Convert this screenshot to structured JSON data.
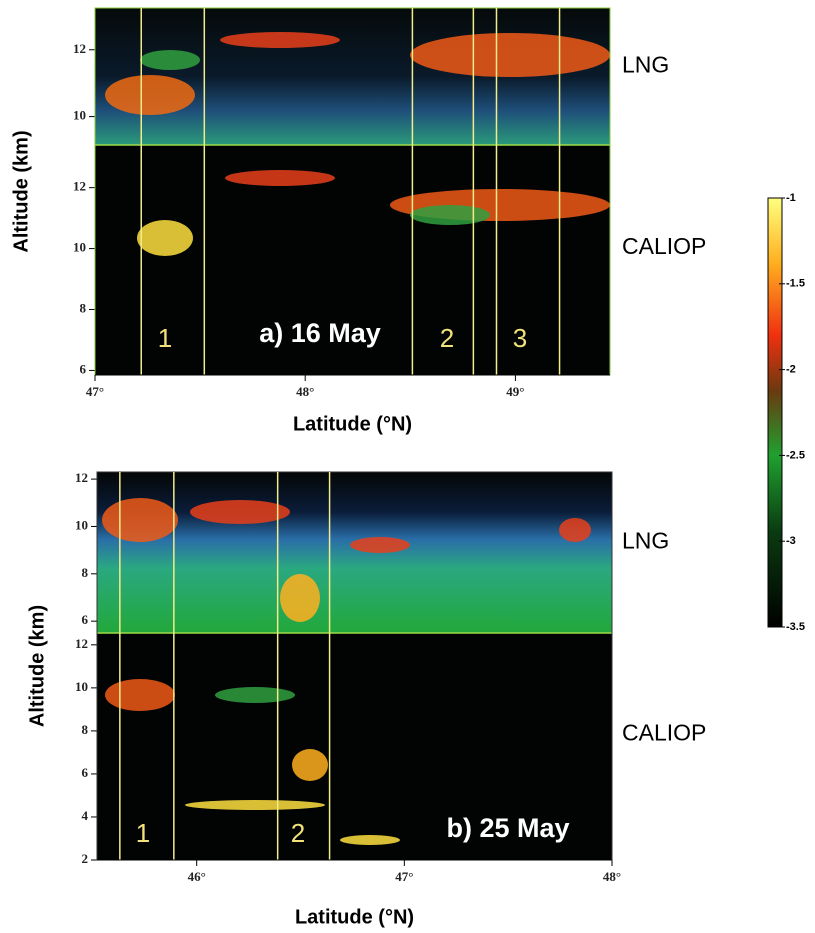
{
  "panels": [
    {
      "label": "a) 16 May",
      "x_axis_label": "Latitude (°N)",
      "y_axis_label": "Altitude (km)",
      "xlim": [
        47,
        49.45
      ],
      "xticks": [
        {
          "value": 47,
          "label": "47°"
        },
        {
          "value": 48,
          "label": "48°"
        },
        {
          "value": 49,
          "label": "49°"
        }
      ],
      "section_lines": [
        47.22,
        47.52,
        48.51,
        48.8,
        48.91,
        49.21
      ],
      "section_labels": [
        "1",
        "2",
        "3"
      ],
      "subplots": [
        {
          "name": "LNG",
          "ylim": [
            9.15,
            13.25
          ],
          "yticks": [
            10,
            12
          ]
        },
        {
          "name": "CALIOP",
          "ylim": [
            5.85,
            13.4
          ],
          "yticks": [
            6,
            8,
            10,
            12
          ]
        }
      ]
    },
    {
      "label": "b) 25 May",
      "x_axis_label": "Latitude (°N)",
      "y_axis_label": "Altitude (km)",
      "xlim": [
        45.52,
        48
      ],
      "xticks": [
        {
          "value": 46,
          "label": "46°"
        },
        {
          "value": 47,
          "label": "47°"
        },
        {
          "value": 48,
          "label": "48°"
        }
      ],
      "section_lines": [
        45.63,
        45.89,
        46.39,
        46.64
      ],
      "section_labels": [
        "1",
        "2"
      ],
      "subplots": [
        {
          "name": "LNG",
          "ylim": [
            5.5,
            12.3
          ],
          "yticks": [
            6,
            8,
            10,
            12
          ]
        },
        {
          "name": "CALIOP",
          "ylim": [
            2,
            12.55
          ],
          "yticks": [
            2,
            4,
            6,
            8,
            10,
            12
          ]
        }
      ]
    }
  ],
  "colorbar": {
    "lim": [
      -3.5,
      -1
    ],
    "ticks": [
      -1,
      -1.5,
      -2,
      -2.5,
      -3,
      -3.5
    ]
  }
}
